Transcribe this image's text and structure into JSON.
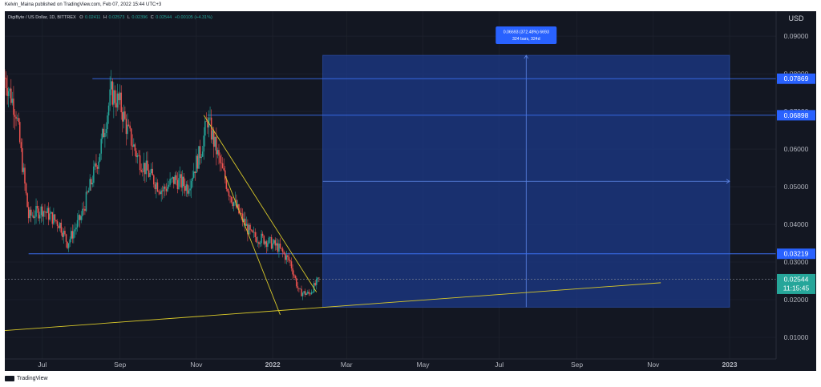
{
  "header": {
    "published_by": "Kelvin_Maina published on TradingView.com, Feb 07, 2022 15:44 UTC+3"
  },
  "legend": {
    "symbol_line": "DigiByte / US Dollar, 1D, BITTREX",
    "o_label": "O",
    "o_value": "0.02411",
    "h_label": "H",
    "h_value": "0.02573",
    "l_label": "L",
    "l_value": "0.02396",
    "c_label": "C",
    "c_value": "0.02544",
    "change": "+0.00105 (+4.31%)"
  },
  "measure_box": {
    "line1": "0.06693 (372.48%) 6693",
    "line2": "324 bars, 324d"
  },
  "footer": {
    "brand": "TradingView"
  },
  "colors": {
    "background": "#131722",
    "up": "#26a69a",
    "down": "#ef5350",
    "trendline": "#d8c82a",
    "hline": "#3a6ff0",
    "measure_fill": "#1c3a8a",
    "price_badge": "#26a69a"
  },
  "chart_data": {
    "type": "candlestick",
    "currency_label": "USD",
    "y_ticks": [
      "0.09000",
      "0.08000",
      "0.07000",
      "0.06000",
      "0.05000",
      "0.04000",
      "0.03000",
      "0.02000",
      "0.01000"
    ],
    "ylim": [
      0.0,
      0.0947
    ],
    "x_ticks": [
      "Jul",
      "Sep",
      "Nov",
      "2022",
      "Mar",
      "May",
      "Jul",
      "Sep",
      "Nov",
      "2023"
    ],
    "horizontal_levels": [
      {
        "value": 0.07869,
        "label": "0.07869"
      },
      {
        "value": 0.06898,
        "label": "0.06898"
      },
      {
        "value": 0.03219,
        "label": "0.03219"
      }
    ],
    "current_price": {
      "value": 0.02544,
      "label": "0.02544",
      "countdown": "11:15:45"
    },
    "close_trace": [
      {
        "date": "2021-06-01",
        "close": 0.079
      },
      {
        "date": "2021-06-10",
        "close": 0.07
      },
      {
        "date": "2021-06-20",
        "close": 0.042
      },
      {
        "date": "2021-07-01",
        "close": 0.044
      },
      {
        "date": "2021-07-15",
        "close": 0.04
      },
      {
        "date": "2021-07-21",
        "close": 0.035
      },
      {
        "date": "2021-08-01",
        "close": 0.042
      },
      {
        "date": "2021-08-15",
        "close": 0.058
      },
      {
        "date": "2021-08-25",
        "close": 0.075
      },
      {
        "date": "2021-09-01",
        "close": 0.072
      },
      {
        "date": "2021-09-07",
        "close": 0.065
      },
      {
        "date": "2021-09-15",
        "close": 0.058
      },
      {
        "date": "2021-09-25",
        "close": 0.053
      },
      {
        "date": "2021-10-05",
        "close": 0.049
      },
      {
        "date": "2021-10-15",
        "close": 0.052
      },
      {
        "date": "2021-10-25",
        "close": 0.05
      },
      {
        "date": "2021-11-05",
        "close": 0.06
      },
      {
        "date": "2021-11-10",
        "close": 0.068
      },
      {
        "date": "2021-11-20",
        "close": 0.056
      },
      {
        "date": "2021-11-28",
        "close": 0.048
      },
      {
        "date": "2021-12-05",
        "close": 0.043
      },
      {
        "date": "2021-12-15",
        "close": 0.037
      },
      {
        "date": "2021-12-25",
        "close": 0.036
      },
      {
        "date": "2022-01-05",
        "close": 0.034
      },
      {
        "date": "2022-01-15",
        "close": 0.03
      },
      {
        "date": "2022-01-22",
        "close": 0.022
      },
      {
        "date": "2022-01-30",
        "close": 0.0215
      },
      {
        "date": "2022-02-07",
        "close": 0.0254
      }
    ],
    "trendlines": [
      {
        "name": "falling upper",
        "from": {
          "date": "2021-11-07",
          "value": 0.069
        },
        "to": {
          "date": "2022-02-05",
          "value": 0.022
        }
      },
      {
        "name": "falling lower",
        "from": {
          "date": "2021-11-24",
          "value": 0.053
        },
        "to": {
          "date": "2022-01-07",
          "value": 0.016
        }
      },
      {
        "name": "long support",
        "from": {
          "date": "2021-06-01",
          "value": 0.0118
        },
        "to": {
          "date": "2022-11-07",
          "value": 0.0245
        }
      }
    ],
    "measure_range": {
      "from": {
        "date": "2022-02-10",
        "value": 0.018
      },
      "to": {
        "date": "2023-01-01",
        "value": 0.0849
      }
    }
  }
}
